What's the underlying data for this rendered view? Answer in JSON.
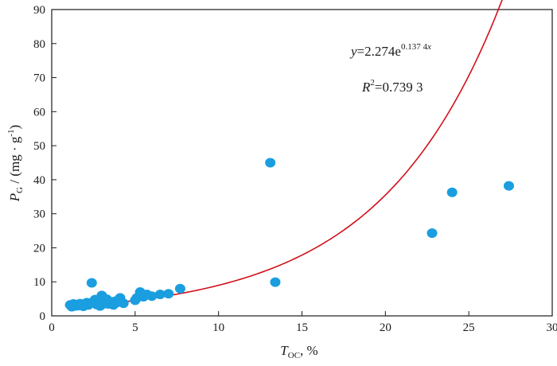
{
  "chart_data": {
    "type": "scatter",
    "title": "",
    "xlabel": {
      "main": "T",
      "sub": "OC",
      "suffix": ", %"
    },
    "ylabel": {
      "main": "P",
      "sub": "G",
      "suffix": " / (mg · g",
      "sup": "-1",
      "close": ")"
    },
    "xlim": [
      0,
      30
    ],
    "ylim": [
      0,
      90
    ],
    "xticks": [
      "0",
      "5",
      "10",
      "15",
      "20",
      "25",
      "30"
    ],
    "yticks": [
      "0",
      "10",
      "20",
      "30",
      "40",
      "50",
      "60",
      "70",
      "80",
      "90"
    ],
    "grid": false,
    "colors": {
      "points": "#1a9ee0",
      "fit": "#d0101a",
      "axis": "#1a1a1a"
    },
    "points": [
      {
        "x": 1.1,
        "y": 3.2
      },
      {
        "x": 1.2,
        "y": 2.7
      },
      {
        "x": 1.3,
        "y": 3.5
      },
      {
        "x": 1.4,
        "y": 2.9
      },
      {
        "x": 1.5,
        "y": 3.3
      },
      {
        "x": 1.6,
        "y": 3.0
      },
      {
        "x": 1.7,
        "y": 3.6
      },
      {
        "x": 1.8,
        "y": 3.1
      },
      {
        "x": 1.9,
        "y": 2.8
      },
      {
        "x": 2.0,
        "y": 3.4
      },
      {
        "x": 2.1,
        "y": 3.9
      },
      {
        "x": 2.2,
        "y": 3.2
      },
      {
        "x": 2.3,
        "y": 3.7
      },
      {
        "x": 2.4,
        "y": 9.7
      },
      {
        "x": 2.5,
        "y": 4.2
      },
      {
        "x": 2.6,
        "y": 4.8
      },
      {
        "x": 2.7,
        "y": 3.3
      },
      {
        "x": 2.8,
        "y": 4.0
      },
      {
        "x": 2.9,
        "y": 2.9
      },
      {
        "x": 3.0,
        "y": 6.0
      },
      {
        "x": 3.1,
        "y": 4.5
      },
      {
        "x": 3.2,
        "y": 3.6
      },
      {
        "x": 3.3,
        "y": 4.9
      },
      {
        "x": 3.4,
        "y": 3.5
      },
      {
        "x": 3.5,
        "y": 3.8
      },
      {
        "x": 3.6,
        "y": 4.1
      },
      {
        "x": 3.7,
        "y": 3.2
      },
      {
        "x": 3.8,
        "y": 4.3
      },
      {
        "x": 3.9,
        "y": 3.9
      },
      {
        "x": 4.0,
        "y": 4.6
      },
      {
        "x": 4.1,
        "y": 5.3
      },
      {
        "x": 4.2,
        "y": 4.0
      },
      {
        "x": 4.3,
        "y": 3.7
      },
      {
        "x": 5.0,
        "y": 4.6
      },
      {
        "x": 5.1,
        "y": 5.3
      },
      {
        "x": 5.3,
        "y": 7.0
      },
      {
        "x": 5.5,
        "y": 5.6
      },
      {
        "x": 5.7,
        "y": 6.3
      },
      {
        "x": 6.0,
        "y": 5.8
      },
      {
        "x": 6.5,
        "y": 6.3
      },
      {
        "x": 7.0,
        "y": 6.5
      },
      {
        "x": 7.7,
        "y": 8.0
      },
      {
        "x": 13.1,
        "y": 45.0
      },
      {
        "x": 13.4,
        "y": 9.9
      },
      {
        "x": 22.8,
        "y": 24.3
      },
      {
        "x": 24.0,
        "y": 36.3
      },
      {
        "x": 27.4,
        "y": 38.2
      }
    ],
    "fit": {
      "a": 2.274,
      "b": 0.1374,
      "x_range": [
        1.0,
        27.4
      ],
      "equation": {
        "lhs": "y",
        "mid": "=2.274e",
        "exp": "0.137 4",
        "exp_var": "x"
      },
      "r2": {
        "label": "R",
        "sup": "2",
        "value": "=0.739 3"
      }
    }
  }
}
